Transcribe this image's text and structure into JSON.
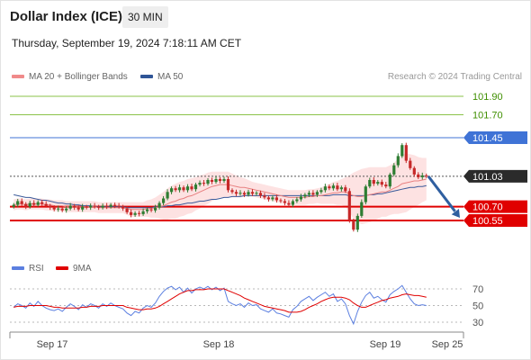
{
  "header": {
    "title": "Dollar Index (ICE)",
    "timeframe": "30 MIN",
    "datetime": "Thursday, September 19, 2024 7:18:11 AM CET"
  },
  "legend": {
    "ma_bb": "MA 20 + Bollinger Bands",
    "ma50": "MA 50",
    "credit": "Research © 2024 Trading Central"
  },
  "rsi_legend": {
    "rsi": "RSI",
    "ma9": "9MA"
  },
  "colors": {
    "up": "#2e7d32",
    "down": "#c62828",
    "bb": "#fcd8d8",
    "ma20": "#e88080",
    "ma50": "#3a5a9a",
    "resistance": "#8bc34a",
    "pivot": "#3f73d6",
    "support": "#e00000",
    "rsi": "#5b7fe0",
    "rsi_ma": "#e00000",
    "arrow": "#2f5fa0"
  },
  "chart_data": [
    {
      "type": "candlestick",
      "ylim": [
        100.45,
        102.0
      ],
      "x_ticks": [
        "Sep 17",
        "Sep 18",
        "Sep 19",
        "Sep 25"
      ],
      "levels": [
        {
          "value": 101.9,
          "label": "101.90",
          "kind": "resistance"
        },
        {
          "value": 101.7,
          "label": "101.70",
          "kind": "resistance"
        },
        {
          "value": 101.45,
          "label": "101.45",
          "kind": "pivot"
        },
        {
          "value": 101.03,
          "label": "101.03",
          "kind": "last"
        },
        {
          "value": 100.7,
          "label": "100.70",
          "kind": "support"
        },
        {
          "value": 100.55,
          "label": "100.55",
          "kind": "support"
        }
      ],
      "close": [
        100.72,
        100.76,
        100.73,
        100.7,
        100.74,
        100.72,
        100.75,
        100.73,
        100.71,
        100.69,
        100.67,
        100.68,
        100.66,
        100.68,
        100.71,
        100.69,
        100.67,
        100.7,
        100.69,
        100.71,
        100.7,
        100.69,
        100.71,
        100.7,
        100.72,
        100.71,
        100.7,
        100.68,
        100.64,
        100.61,
        100.63,
        100.62,
        100.65,
        100.67,
        100.66,
        100.69,
        100.74,
        100.79,
        100.86,
        100.9,
        100.88,
        100.91,
        100.88,
        100.92,
        100.89,
        100.94,
        100.96,
        100.95,
        100.99,
        100.97,
        101.0,
        100.98,
        101.0,
        100.88,
        100.86,
        100.84,
        100.85,
        100.83,
        100.86,
        100.84,
        100.85,
        100.82,
        100.8,
        100.78,
        100.8,
        100.77,
        100.76,
        100.74,
        100.72,
        100.76,
        100.78,
        100.81,
        100.83,
        100.85,
        100.83,
        100.86,
        100.88,
        100.92,
        100.9,
        100.93,
        100.89,
        100.91,
        100.87,
        100.55,
        100.45,
        100.6,
        100.75,
        100.92,
        100.99,
        100.95,
        100.97,
        100.94,
        100.92,
        101.05,
        101.15,
        101.25,
        101.37,
        101.2,
        101.12,
        101.05,
        101.02,
        101.04,
        101.03
      ],
      "ma20": [
        100.72,
        100.73,
        100.73,
        100.72,
        100.73,
        100.73,
        100.73,
        100.73,
        100.72,
        100.72,
        100.71,
        100.71,
        100.71,
        100.7,
        100.7,
        100.7,
        100.7,
        100.7,
        100.7,
        100.7,
        100.7,
        100.69,
        100.69,
        100.69,
        100.69,
        100.69,
        100.69,
        100.69,
        100.68,
        100.67,
        100.67,
        100.67,
        100.67,
        100.68,
        100.68,
        100.69,
        100.7,
        100.71,
        100.73,
        100.75,
        100.76,
        100.78,
        100.79,
        100.81,
        100.82,
        100.84,
        100.86,
        100.88,
        100.9,
        100.92,
        100.93,
        100.94,
        100.94,
        100.94,
        100.93,
        100.92,
        100.91,
        100.91,
        100.9,
        100.89,
        100.88,
        100.87,
        100.86,
        100.85,
        100.84,
        100.83,
        100.82,
        100.81,
        100.8,
        100.8,
        100.8,
        100.8,
        100.8,
        100.81,
        100.81,
        100.82,
        100.82,
        100.83,
        100.84,
        100.85,
        100.85,
        100.86,
        100.86,
        100.84,
        100.82,
        100.81,
        100.81,
        100.82,
        100.83,
        100.84,
        100.85,
        100.86,
        100.86,
        100.88,
        100.9,
        100.92,
        100.95,
        100.96,
        100.97,
        100.98,
        100.98,
        100.99,
        101.0
      ],
      "ma50": [
        100.83,
        100.82,
        100.81,
        100.8,
        100.8,
        100.79,
        100.78,
        100.77,
        100.77,
        100.76,
        100.75,
        100.74,
        100.74,
        100.73,
        100.73,
        100.72,
        100.72,
        100.71,
        100.71,
        100.71,
        100.7,
        100.7,
        100.7,
        100.7,
        100.7,
        100.7,
        100.7,
        100.7,
        100.69,
        100.69,
        100.69,
        100.69,
        100.69,
        100.69,
        100.69,
        100.7,
        100.7,
        100.7,
        100.71,
        100.71,
        100.72,
        100.72,
        100.73,
        100.74,
        100.74,
        100.75,
        100.76,
        100.76,
        100.77,
        100.78,
        100.78,
        100.79,
        100.8,
        100.8,
        100.81,
        100.81,
        100.81,
        100.82,
        100.82,
        100.82,
        100.82,
        100.82,
        100.82,
        100.82,
        100.82,
        100.82,
        100.82,
        100.82,
        100.82,
        100.82,
        100.82,
        100.82,
        100.82,
        100.82,
        100.82,
        100.82,
        100.82,
        100.82,
        100.82,
        100.83,
        100.83,
        100.83,
        100.83,
        100.82,
        100.82,
        100.82,
        100.82,
        100.82,
        100.83,
        100.83,
        100.84,
        100.84,
        100.85,
        100.86,
        100.87,
        100.88,
        100.89,
        100.9,
        100.91,
        100.91,
        100.92,
        100.92,
        100.93
      ],
      "bb_width": [
        0.06,
        0.06,
        0.06,
        0.06,
        0.06,
        0.06,
        0.06,
        0.06,
        0.06,
        0.06,
        0.06,
        0.06,
        0.06,
        0.06,
        0.06,
        0.06,
        0.06,
        0.06,
        0.06,
        0.06,
        0.06,
        0.06,
        0.06,
        0.06,
        0.06,
        0.06,
        0.06,
        0.06,
        0.07,
        0.08,
        0.08,
        0.08,
        0.08,
        0.09,
        0.1,
        0.11,
        0.13,
        0.15,
        0.17,
        0.18,
        0.19,
        0.19,
        0.19,
        0.19,
        0.19,
        0.18,
        0.18,
        0.17,
        0.17,
        0.16,
        0.15,
        0.14,
        0.14,
        0.14,
        0.13,
        0.12,
        0.11,
        0.1,
        0.09,
        0.08,
        0.08,
        0.08,
        0.08,
        0.08,
        0.08,
        0.08,
        0.08,
        0.08,
        0.08,
        0.08,
        0.08,
        0.08,
        0.08,
        0.08,
        0.08,
        0.08,
        0.09,
        0.1,
        0.11,
        0.12,
        0.13,
        0.14,
        0.16,
        0.2,
        0.25,
        0.28,
        0.3,
        0.3,
        0.3,
        0.29,
        0.28,
        0.27,
        0.27,
        0.27,
        0.28,
        0.3,
        0.32,
        0.32,
        0.3,
        0.28,
        0.26,
        0.24,
        0.23
      ],
      "forecast": {
        "from": 101.03,
        "to": 100.55
      }
    },
    {
      "type": "line",
      "title": "RSI",
      "ylim": [
        20,
        80
      ],
      "y_ticks": [
        70,
        50,
        30
      ],
      "rsi": [
        48,
        52,
        50,
        47,
        53,
        49,
        55,
        50,
        47,
        45,
        44,
        46,
        43,
        48,
        52,
        49,
        45,
        51,
        48,
        52,
        50,
        47,
        52,
        49,
        53,
        50,
        48,
        46,
        41,
        38,
        43,
        41,
        47,
        50,
        48,
        53,
        61,
        67,
        71,
        73,
        69,
        72,
        66,
        71,
        65,
        70,
        72,
        70,
        73,
        69,
        72,
        68,
        71,
        55,
        52,
        50,
        52,
        48,
        53,
        50,
        51,
        46,
        44,
        42,
        46,
        41,
        40,
        38,
        36,
        45,
        49,
        55,
        58,
        61,
        56,
        60,
        63,
        66,
        61,
        64,
        55,
        58,
        52,
        38,
        28,
        43,
        54,
        62,
        66,
        59,
        61,
        57,
        54,
        63,
        67,
        70,
        74,
        66,
        58,
        52,
        50,
        51,
        50
      ],
      "ma9": [
        48,
        49,
        49,
        49,
        50,
        50,
        50,
        50,
        50,
        49,
        48,
        48,
        47,
        47,
        47,
        47,
        47,
        48,
        48,
        49,
        49,
        49,
        50,
        50,
        50,
        50,
        50,
        50,
        48,
        47,
        46,
        45,
        45,
        46,
        46,
        47,
        49,
        52,
        55,
        58,
        61,
        64,
        66,
        68,
        68,
        69,
        69,
        69,
        70,
        70,
        70,
        70,
        70,
        68,
        66,
        64,
        62,
        59,
        57,
        55,
        53,
        51,
        49,
        48,
        47,
        46,
        45,
        44,
        42,
        42,
        42,
        43,
        45,
        48,
        50,
        52,
        55,
        57,
        59,
        60,
        60,
        60,
        59,
        57,
        53,
        50,
        48,
        48,
        50,
        52,
        54,
        56,
        57,
        59,
        60,
        61,
        63,
        64,
        63,
        62,
        62,
        61,
        60
      ]
    }
  ]
}
